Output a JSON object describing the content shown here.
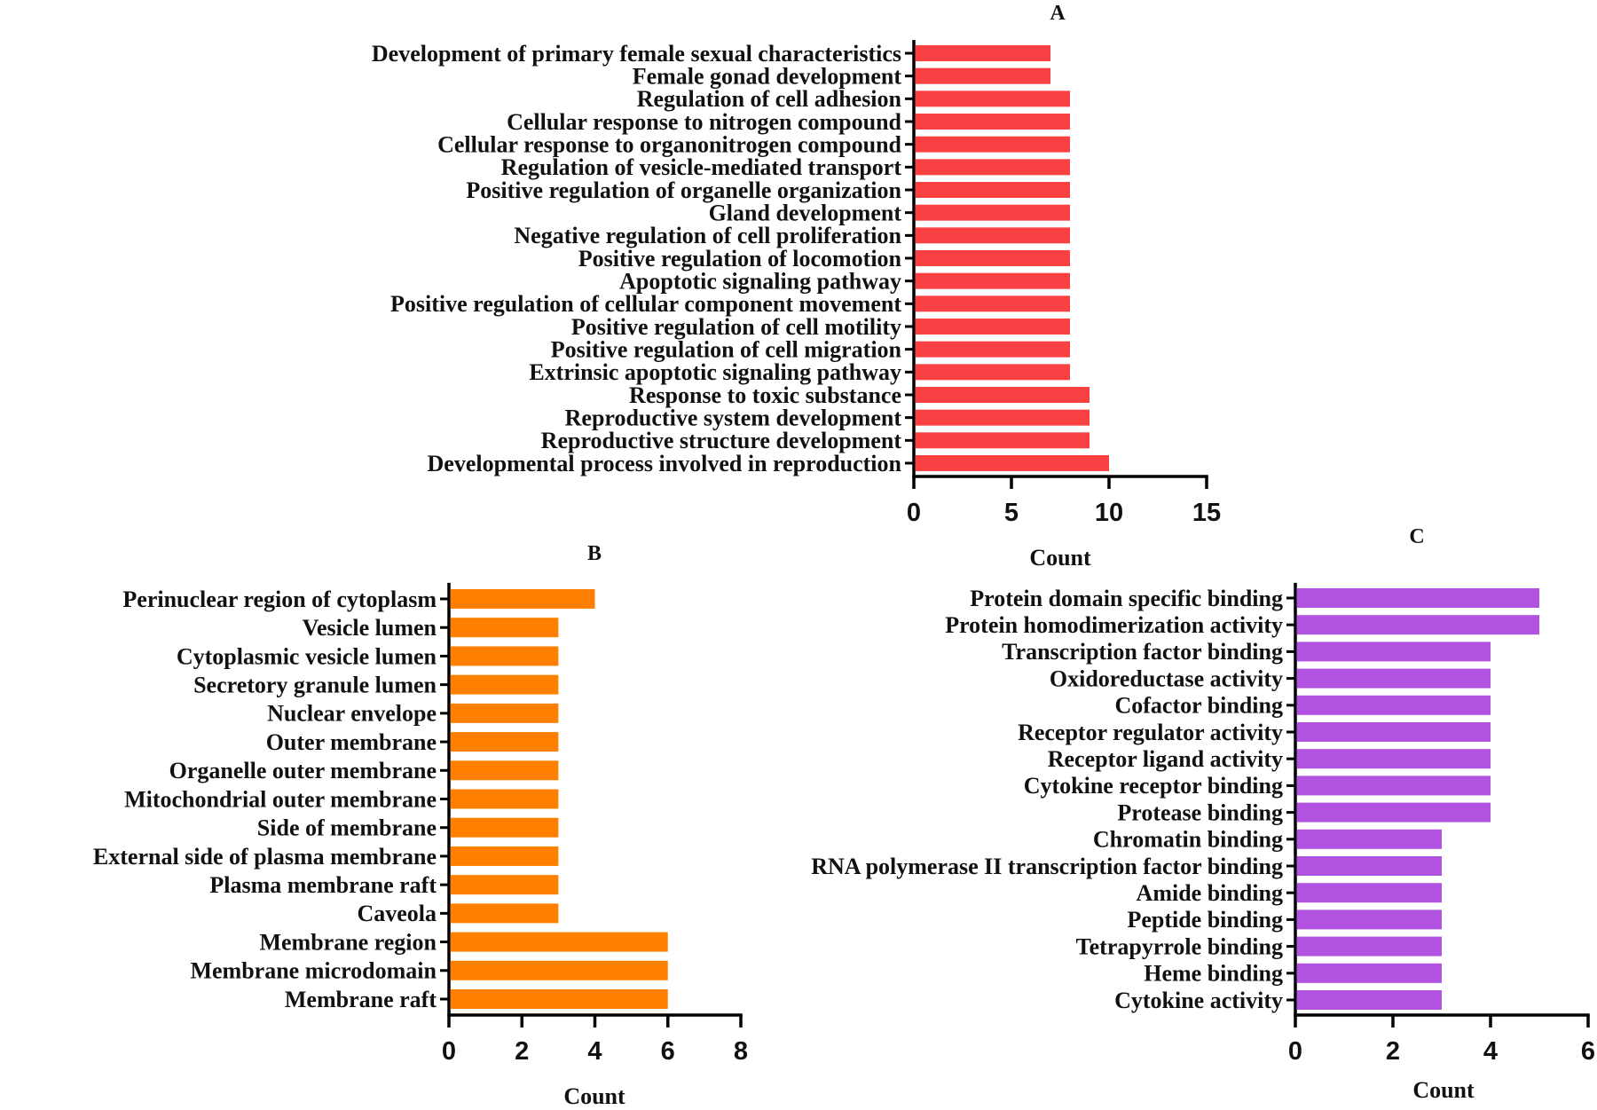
{
  "chart_data": [
    {
      "type": "bar",
      "orientation": "horizontal",
      "title": "A",
      "xlabel": "Count",
      "ylabel": "",
      "xlim": [
        0,
        15
      ],
      "xticks": [
        0,
        5,
        10,
        15
      ],
      "color": "#f94144",
      "categories": [
        "Development of primary female sexual characteristics",
        "Female gonad development",
        "Regulation of cell adhesion",
        "Cellular response to nitrogen compound",
        "Cellular response to organonitrogen compound",
        "Regulation of vesicle-mediated transport",
        "Positive regulation of organelle organization",
        "Gland development",
        "Negative regulation of cell proliferation",
        "Positive regulation of locomotion",
        "Apoptotic signaling pathway",
        "Positive regulation of cellular component movement",
        "Positive regulation of cell motility",
        "Positive regulation of cell migration",
        "Extrinsic apoptotic signaling pathway",
        "Response to toxic substance",
        "Reproductive system development",
        "Reproductive structure development",
        "Developmental process involved in reproduction"
      ],
      "values": [
        7,
        7,
        8,
        8,
        8,
        8,
        8,
        8,
        8,
        8,
        8,
        8,
        8,
        8,
        8,
        9,
        9,
        9,
        10
      ]
    },
    {
      "type": "bar",
      "orientation": "horizontal",
      "title": "B",
      "xlabel": "Count",
      "ylabel": "",
      "xlim": [
        0,
        8
      ],
      "xticks": [
        0,
        2,
        4,
        6,
        8
      ],
      "color": "#ff8000",
      "categories": [
        "Perinuclear region of cytoplasm",
        "Vesicle lumen",
        "Cytoplasmic vesicle lumen",
        "Secretory granule lumen",
        "Nuclear envelope",
        "Outer membrane",
        "Organelle outer membrane",
        "Mitochondrial outer membrane",
        "Side of membrane",
        "External side of plasma membrane",
        "Plasma membrane raft",
        "Caveola",
        "Membrane region",
        "Membrane microdomain",
        "Membrane raft"
      ],
      "values": [
        4,
        3,
        3,
        3,
        3,
        3,
        3,
        3,
        3,
        3,
        3,
        3,
        6,
        6,
        6
      ]
    },
    {
      "type": "bar",
      "orientation": "horizontal",
      "title": "C",
      "xlabel": "Count",
      "ylabel": "",
      "xlim": [
        0,
        6
      ],
      "xticks": [
        0,
        2,
        4,
        6
      ],
      "color": "#b153e0",
      "categories": [
        "Protein domain specific binding",
        "Protein homodimerization activity",
        "Transcription factor binding",
        "Oxidoreductase activity",
        "Cofactor binding",
        "Receptor regulator activity",
        "Receptor ligand activity",
        "Cytokine receptor binding",
        "Protease binding",
        "Chromatin binding",
        "RNA polymerase II transcription factor binding",
        "Amide binding",
        "Peptide binding",
        "Tetrapyrrole binding",
        "Heme binding",
        "Cytokine activity"
      ],
      "values": [
        5,
        5,
        4,
        4,
        4,
        4,
        4,
        4,
        4,
        3,
        3,
        3,
        3,
        3,
        3,
        3
      ]
    }
  ]
}
